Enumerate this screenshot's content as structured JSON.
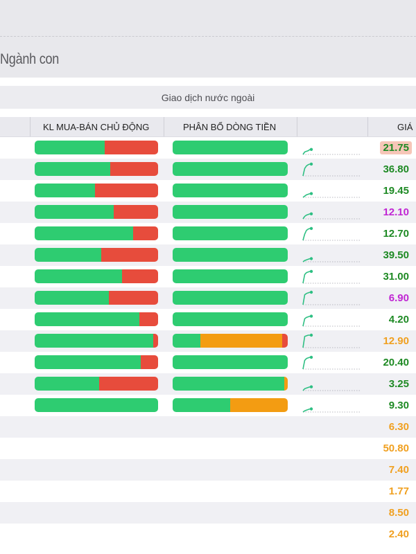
{
  "section": {
    "title": "Ngành con"
  },
  "foreign_trade": {
    "label": "Giao dịch nước ngoài"
  },
  "columns": {
    "active_volume": "KL MUA-BÁN CHỦ ĐỘNG",
    "money_flow": "PHÂN BỔ DÒNG TIỀN",
    "price": "GIÁ"
  },
  "colors": {
    "green": "#2ecc71",
    "red": "#e74c3c",
    "orange": "#f39c12",
    "purple": "#c026d3",
    "price_up": "#1e8a24",
    "price_ref": "#f0a020",
    "price_highlight_bg": "#f6c6b8"
  },
  "rows": [
    {
      "buy_ratio": 0.57,
      "flow": {
        "green": 1.0,
        "orange": 0,
        "red": 0
      },
      "price": "21.75",
      "price_color": "#1e8a24",
      "highlight": true,
      "spark": [
        0,
        0.2,
        0.25,
        0.3,
        0.4
      ]
    },
    {
      "buy_ratio": 0.61,
      "flow": {
        "green": 1.0,
        "orange": 0,
        "red": 0
      },
      "price": "36.80",
      "price_color": "#1e8a24",
      "highlight": false,
      "spark": [
        0,
        0.6,
        0.8,
        0.9,
        0.95
      ]
    },
    {
      "buy_ratio": 0.49,
      "flow": {
        "green": 1.0,
        "orange": 0,
        "red": 0
      },
      "price": "19.45",
      "price_color": "#1e8a24",
      "highlight": false,
      "spark": [
        0,
        0.1,
        0.2,
        0.25,
        0.3
      ]
    },
    {
      "buy_ratio": 0.64,
      "flow": {
        "green": 1.0,
        "orange": 0,
        "red": 0
      },
      "price": "12.10",
      "price_color": "#c026d3",
      "highlight": false,
      "spark": [
        0,
        0.2,
        0.3,
        0.35,
        0.4
      ]
    },
    {
      "buy_ratio": 0.8,
      "flow": {
        "green": 1.0,
        "orange": 0,
        "red": 0
      },
      "price": "12.70",
      "price_color": "#1e8a24",
      "highlight": false,
      "spark": [
        0,
        0.5,
        0.8,
        0.9,
        0.95
      ]
    },
    {
      "buy_ratio": 0.54,
      "flow": {
        "green": 1.0,
        "orange": 0,
        "red": 0
      },
      "price": "39.50",
      "price_color": "#1e8a24",
      "highlight": false,
      "spark": [
        0,
        0.1,
        0.15,
        0.2,
        0.25
      ]
    },
    {
      "buy_ratio": 0.71,
      "flow": {
        "green": 1.0,
        "orange": 0,
        "red": 0
      },
      "price": "31.00",
      "price_color": "#1e8a24",
      "highlight": false,
      "spark": [
        0,
        0.7,
        0.85,
        0.9,
        0.95
      ]
    },
    {
      "buy_ratio": 0.6,
      "flow": {
        "green": 1.0,
        "orange": 0,
        "red": 0
      },
      "price": "6.90",
      "price_color": "#c026d3",
      "highlight": false,
      "spark": [
        0,
        0.8,
        0.9,
        0.95,
        1.0
      ]
    },
    {
      "buy_ratio": 0.85,
      "flow": {
        "green": 1.0,
        "orange": 0,
        "red": 0
      },
      "price": "4.20",
      "price_color": "#1e8a24",
      "highlight": false,
      "spark": [
        0,
        0.6,
        0.7,
        0.75,
        0.8
      ]
    },
    {
      "buy_ratio": 0.96,
      "flow": {
        "green": 0.24,
        "orange": 0.71,
        "red": 0.05
      },
      "price": "12.90",
      "price_color": "#f0a020",
      "highlight": false,
      "spark": [
        0,
        0.9,
        0.95,
        1.0,
        1.0
      ]
    },
    {
      "buy_ratio": 0.86,
      "flow": {
        "green": 1.0,
        "orange": 0,
        "red": 0
      },
      "price": "20.40",
      "price_color": "#1e8a24",
      "highlight": false,
      "spark": [
        0,
        0.7,
        0.85,
        0.9,
        0.95
      ]
    },
    {
      "buy_ratio": 0.52,
      "flow": {
        "green": 0.97,
        "orange": 0.03,
        "red": 0
      },
      "price": "3.25",
      "price_color": "#1e8a24",
      "highlight": false,
      "spark": [
        0,
        0.15,
        0.2,
        0.25,
        0.3
      ]
    },
    {
      "buy_ratio": 1.0,
      "flow": {
        "green": 0.5,
        "orange": 0.5,
        "red": 0
      },
      "price": "9.30",
      "price_color": "#1e8a24",
      "highlight": false,
      "spark": [
        0,
        0.1,
        0.15,
        0.2,
        0.25
      ]
    },
    {
      "buy_ratio": null,
      "flow": null,
      "price": "6.30",
      "price_color": "#f0a020",
      "highlight": false,
      "spark": null
    },
    {
      "buy_ratio": null,
      "flow": null,
      "price": "50.80",
      "price_color": "#f0a020",
      "highlight": false,
      "spark": null
    },
    {
      "buy_ratio": null,
      "flow": null,
      "price": "7.40",
      "price_color": "#f0a020",
      "highlight": false,
      "spark": null
    },
    {
      "buy_ratio": null,
      "flow": null,
      "price": "1.77",
      "price_color": "#f0a020",
      "highlight": false,
      "spark": null
    },
    {
      "buy_ratio": null,
      "flow": null,
      "price": "8.50",
      "price_color": "#f0a020",
      "highlight": false,
      "spark": null
    },
    {
      "buy_ratio": null,
      "flow": null,
      "price": "2.40",
      "price_color": "#f0a020",
      "highlight": false,
      "spark": null
    }
  ]
}
